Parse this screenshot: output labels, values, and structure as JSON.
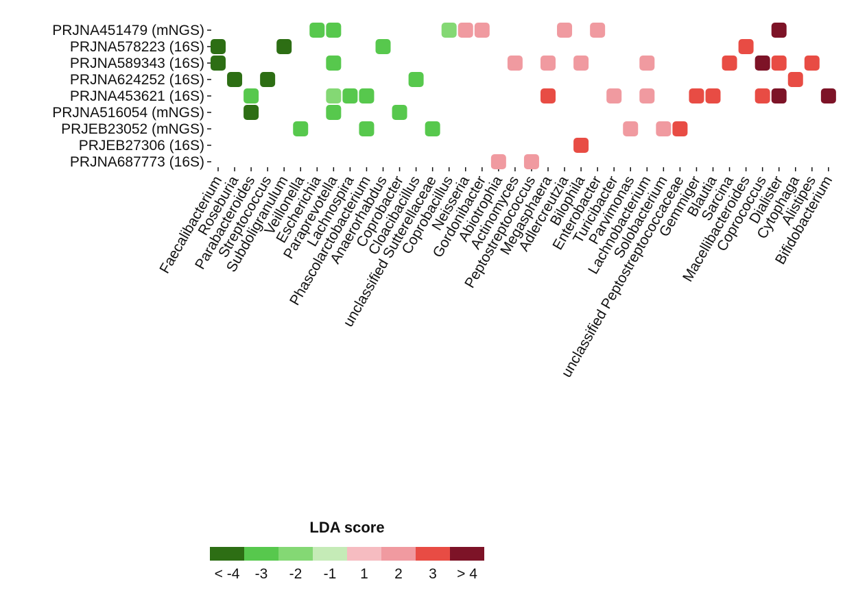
{
  "chart_data": {
    "type": "heatmap",
    "rows": [
      "PRJNA451479 (mNGS)",
      "PRJNA578223 (16S)",
      "PRJNA589343 (16S)",
      "PRJNA624252 (16S)",
      "PRJNA453621 (16S)",
      "PRJNA516054 (mNGS)",
      "PRJEB23052 (mNGS)",
      "PRJEB27306 (16S)",
      "PRJNA687773 (16S)"
    ],
    "columns": [
      "Faecalibacterium",
      "Roseburia",
      "Parabacteroides",
      "Streptococcus",
      "Subdoligranulum",
      "Veillonella",
      "Escherichia",
      "Paraprevotella",
      "Lachnospira",
      "Phascolarctobacterium",
      "Anaerorhabdus",
      "Coprobacter",
      "Cloacibacillus",
      "unclassified Sutterellaceae",
      "Coprobacillus",
      "Neisseria",
      "Gordonibacter",
      "Abiotrophia",
      "Actinomyces",
      "Peptostreptococcus",
      "Megasphaera",
      "Adlercreutzia",
      "Bilophila",
      "Enterobacter",
      "Turicibacter",
      "Parvimonas",
      "Lachnobacterium",
      "Solobacterium",
      "unclassified Peptostreptococcaceae",
      "Gemmiger",
      "Blautia",
      "Sarcina",
      "Macellibacteroides",
      "Coprococcus",
      "Dialister",
      "Cytophaga",
      "Alistipes",
      "Bifidobacterium"
    ],
    "cells": [
      {
        "row": 0,
        "col": 6,
        "level": -3
      },
      {
        "row": 0,
        "col": 7,
        "level": -3
      },
      {
        "row": 0,
        "col": 14,
        "level": -2
      },
      {
        "row": 0,
        "col": 15,
        "level": 2
      },
      {
        "row": 0,
        "col": 16,
        "level": 2
      },
      {
        "row": 0,
        "col": 21,
        "level": 2
      },
      {
        "row": 0,
        "col": 23,
        "level": 2
      },
      {
        "row": 0,
        "col": 34,
        "level": 4
      },
      {
        "row": 1,
        "col": 0,
        "level": -4
      },
      {
        "row": 1,
        "col": 4,
        "level": -4
      },
      {
        "row": 1,
        "col": 10,
        "level": -3
      },
      {
        "row": 1,
        "col": 32,
        "level": 3
      },
      {
        "row": 2,
        "col": 0,
        "level": -4
      },
      {
        "row": 2,
        "col": 7,
        "level": -3
      },
      {
        "row": 2,
        "col": 18,
        "level": 2
      },
      {
        "row": 2,
        "col": 20,
        "level": 2
      },
      {
        "row": 2,
        "col": 22,
        "level": 2
      },
      {
        "row": 2,
        "col": 26,
        "level": 2
      },
      {
        "row": 2,
        "col": 31,
        "level": 3
      },
      {
        "row": 2,
        "col": 33,
        "level": 4
      },
      {
        "row": 2,
        "col": 34,
        "level": 3
      },
      {
        "row": 2,
        "col": 36,
        "level": 3
      },
      {
        "row": 3,
        "col": 1,
        "level": -4
      },
      {
        "row": 3,
        "col": 3,
        "level": -4
      },
      {
        "row": 3,
        "col": 12,
        "level": -3
      },
      {
        "row": 3,
        "col": 35,
        "level": 3
      },
      {
        "row": 4,
        "col": 2,
        "level": -3
      },
      {
        "row": 4,
        "col": 7,
        "level": -2
      },
      {
        "row": 4,
        "col": 8,
        "level": -3
      },
      {
        "row": 4,
        "col": 9,
        "level": -3
      },
      {
        "row": 4,
        "col": 20,
        "level": 3
      },
      {
        "row": 4,
        "col": 24,
        "level": 2
      },
      {
        "row": 4,
        "col": 26,
        "level": 2
      },
      {
        "row": 4,
        "col": 29,
        "level": 3
      },
      {
        "row": 4,
        "col": 30,
        "level": 3
      },
      {
        "row": 4,
        "col": 33,
        "level": 3
      },
      {
        "row": 4,
        "col": 34,
        "level": 4
      },
      {
        "row": 4,
        "col": 37,
        "level": 4
      },
      {
        "row": 5,
        "col": 2,
        "level": -4
      },
      {
        "row": 5,
        "col": 7,
        "level": -3
      },
      {
        "row": 5,
        "col": 11,
        "level": -3
      },
      {
        "row": 6,
        "col": 5,
        "level": -3
      },
      {
        "row": 6,
        "col": 9,
        "level": -3
      },
      {
        "row": 6,
        "col": 13,
        "level": -3
      },
      {
        "row": 6,
        "col": 25,
        "level": 2
      },
      {
        "row": 6,
        "col": 27,
        "level": 2
      },
      {
        "row": 6,
        "col": 28,
        "level": 3
      },
      {
        "row": 7,
        "col": 22,
        "level": 3
      },
      {
        "row": 8,
        "col": 17,
        "level": 2
      },
      {
        "row": 8,
        "col": 19,
        "level": 2
      }
    ],
    "legend": {
      "title": "LDA score",
      "items": [
        {
          "level": -4,
          "label": "< -4",
          "color": "#2d6e14"
        },
        {
          "level": -3,
          "label": "-3",
          "color": "#57c84d"
        },
        {
          "level": -2,
          "label": "-2",
          "color": "#84d874"
        },
        {
          "level": -1,
          "label": "-1",
          "color": "#c5ebb7"
        },
        {
          "level": 1,
          "label": "1",
          "color": "#f6bcc1"
        },
        {
          "level": 2,
          "label": "2",
          "color": "#f09aa0"
        },
        {
          "level": 3,
          "label": "3",
          "color": "#e84c44"
        },
        {
          "level": 4,
          "label": "> 4",
          "color": "#7d1327"
        }
      ]
    }
  }
}
